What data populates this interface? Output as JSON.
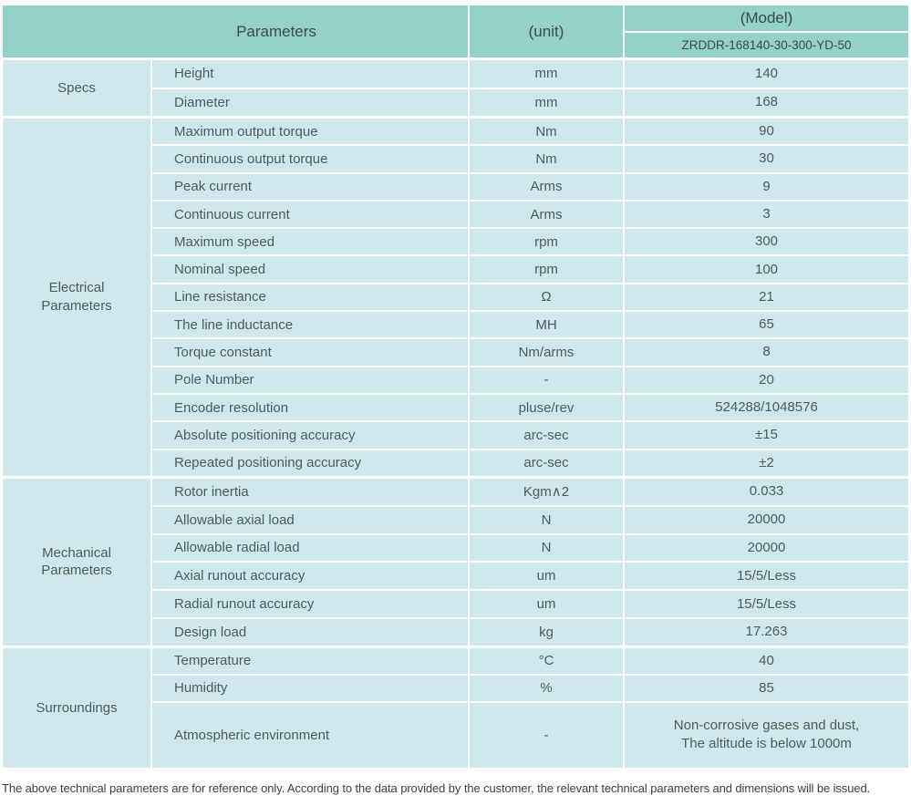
{
  "table": {
    "header": {
      "parameters_label": "Parameters",
      "unit_label": "(unit)",
      "model_label": "(Model)",
      "model_value": "ZRDDR-168140-30-300-YD-50"
    },
    "sections": [
      {
        "category": "Specs",
        "rows": [
          {
            "name": "Height",
            "unit": "mm",
            "value": "140"
          },
          {
            "name": "Diameter",
            "unit": "mm",
            "value": "168"
          }
        ]
      },
      {
        "category": "Electrical Parameters",
        "rows": [
          {
            "name": "Maximum output torque",
            "unit": "Nm",
            "value": "90"
          },
          {
            "name": "Continuous output torque",
            "unit": "Nm",
            "value": "30"
          },
          {
            "name": "Peak current",
            "unit": "Arms",
            "value": "9"
          },
          {
            "name": "Continuous current",
            "unit": "Arms",
            "value": "3"
          },
          {
            "name": "Maximum speed",
            "unit": "rpm",
            "value": "300"
          },
          {
            "name": "Nominal speed",
            "unit": "rpm",
            "value": "100"
          },
          {
            "name": "Line resistance",
            "unit": "Ω",
            "value": "21"
          },
          {
            "name": "The line inductance",
            "unit": "MH",
            "value": "65"
          },
          {
            "name": "Torque constant",
            "unit": "Nm/arms",
            "value": "8"
          },
          {
            "name": "Pole Number",
            "unit": "-",
            "value": "20"
          },
          {
            "name": "Encoder resolution",
            "unit": "pluse/rev",
            "value": "524288/1048576"
          },
          {
            "name": "Absolute positioning accuracy",
            "unit": "arc-sec",
            "value": "±15"
          },
          {
            "name": "Repeated positioning accuracy",
            "unit": "arc-sec",
            "value": "±2"
          }
        ]
      },
      {
        "category": "Mechanical Parameters",
        "rows": [
          {
            "name": "Rotor inertia",
            "unit": "Kgm∧2",
            "value": "0.033"
          },
          {
            "name": "Allowable axial load",
            "unit": "N",
            "value": "20000"
          },
          {
            "name": "Allowable radial load",
            "unit": "N",
            "value": "20000"
          },
          {
            "name": "Axial runout accuracy",
            "unit": "um",
            "value": "15/5/Less"
          },
          {
            "name": "Radial runout accuracy",
            "unit": "um",
            "value": "15/5/Less"
          },
          {
            "name": "Design load",
            "unit": "kg",
            "value": "17.263"
          }
        ]
      },
      {
        "category": "Surroundings",
        "rows": [
          {
            "name": "Temperature",
            "unit": "°C",
            "value": "40"
          },
          {
            "name": "Humidity",
            "unit": "%",
            "value": "85"
          },
          {
            "name": "Atmospheric environment",
            "unit": "-",
            "value": "Non-corrosive gases and dust,\nThe altitude is below 1000m"
          }
        ]
      }
    ],
    "footer_note": "The above technical parameters are for reference only. According to the data provided by the customer, the relevant technical parameters and dimensions will be issued."
  },
  "colors": {
    "header_bg": "#94d1c9",
    "body_bg": "#cfe8ee",
    "divider": "#ffffff",
    "header_text": "#3b4a4c",
    "body_text": "#4d5a5c",
    "footer_text": "#3f3f3f"
  }
}
